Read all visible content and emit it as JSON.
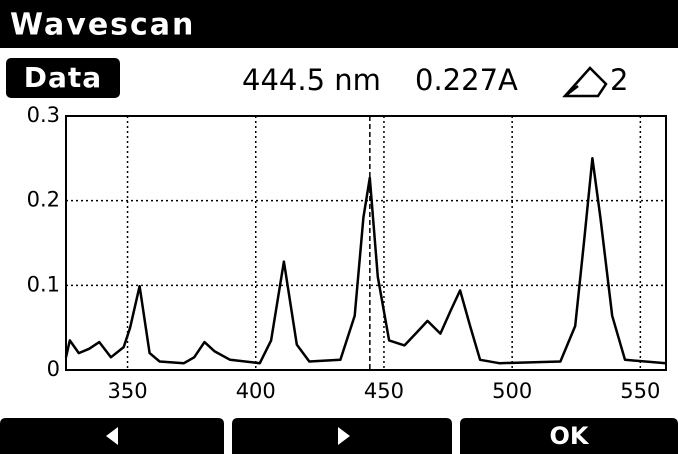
{
  "header": {
    "title": "Wavescan"
  },
  "tab": "Data",
  "readout": {
    "wavelength": "444.5 nm",
    "absorbance": "0.227A",
    "index": "2"
  },
  "chart_data": {
    "type": "line",
    "x": [
      326,
      327.5,
      331,
      335,
      339,
      343.5,
      348.5,
      351,
      354.7,
      358.6,
      362.5,
      372,
      376,
      380,
      384,
      390,
      401.6,
      406,
      411,
      416,
      420.9,
      433,
      438.6,
      442,
      444.5,
      447.6,
      452,
      458,
      463,
      467,
      472,
      476,
      479.7,
      483.6,
      487.5,
      495,
      518.8,
      524.6,
      528,
      531.3,
      534.4,
      539,
      544,
      560
    ],
    "series": [
      {
        "color": "#000000",
        "values": [
          0.015,
          0.035,
          0.02,
          0.025,
          0.033,
          0.015,
          0.027,
          0.05,
          0.099,
          0.02,
          0.01,
          0.008,
          0.015,
          0.033,
          0.022,
          0.012,
          0.008,
          0.035,
          0.128,
          0.03,
          0.01,
          0.012,
          0.064,
          0.18,
          0.227,
          0.11,
          0.035,
          0.029,
          0.045,
          0.058,
          0.043,
          0.07,
          0.094,
          0.052,
          0.012,
          0.008,
          0.01,
          0.052,
          0.15,
          0.25,
          0.18,
          0.064,
          0.012,
          0.008
        ]
      }
    ],
    "xlim": [
      326,
      560
    ],
    "xticks": [
      350,
      400,
      450,
      500,
      550
    ],
    "ylim": [
      0,
      0.3
    ],
    "yticks": [
      0,
      0.1,
      0.2,
      0.3
    ],
    "grid": true,
    "cursor": 444.5
  },
  "buttons": {
    "ok": "OK"
  }
}
